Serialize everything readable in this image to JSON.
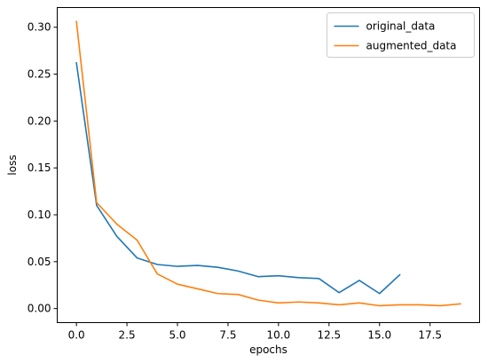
{
  "chart_data": {
    "type": "line",
    "xlabel": "epochs",
    "ylabel": "loss",
    "xlim": [
      -0.95,
      19.95
    ],
    "ylim": [
      -0.015,
      0.321
    ],
    "xticks": [
      0.0,
      2.5,
      5.0,
      7.5,
      10.0,
      12.5,
      15.0,
      17.5
    ],
    "xtick_labels": [
      "0.0",
      "2.5",
      "5.0",
      "7.5",
      "10.0",
      "12.5",
      "15.0",
      "17.5"
    ],
    "yticks": [
      0.0,
      0.05,
      0.1,
      0.15,
      0.2,
      0.25,
      0.3
    ],
    "ytick_labels": [
      "0.00",
      "0.05",
      "0.10",
      "0.15",
      "0.20",
      "0.25",
      "0.30"
    ],
    "grid": false,
    "legend_position": "top-right",
    "series": [
      {
        "name": "original_data",
        "color": "#1f77b4",
        "x": [
          0,
          1,
          2,
          3,
          4,
          5,
          6,
          7,
          8,
          9,
          10,
          11,
          12,
          13,
          14,
          15,
          16
        ],
        "values": [
          0.262,
          0.11,
          0.077,
          0.054,
          0.047,
          0.045,
          0.046,
          0.044,
          0.04,
          0.034,
          0.035,
          0.033,
          0.032,
          0.017,
          0.03,
          0.016,
          0.036
        ]
      },
      {
        "name": "augmented_data",
        "color": "#ff7f0e",
        "x": [
          0,
          1,
          2,
          3,
          4,
          5,
          6,
          7,
          8,
          9,
          10,
          11,
          12,
          13,
          14,
          15,
          16,
          17,
          18,
          19
        ],
        "values": [
          0.306,
          0.113,
          0.09,
          0.073,
          0.037,
          0.026,
          0.021,
          0.016,
          0.015,
          0.009,
          0.006,
          0.007,
          0.006,
          0.004,
          0.006,
          0.003,
          0.004,
          0.004,
          0.003,
          0.005
        ]
      }
    ]
  }
}
